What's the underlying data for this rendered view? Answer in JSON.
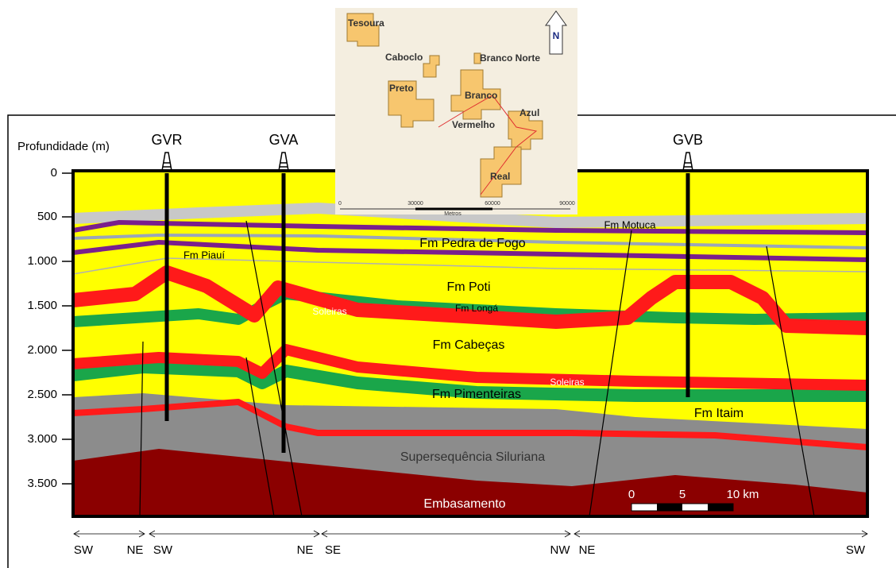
{
  "axis": {
    "title": "Profundidade (m)",
    "ticks": [
      "0",
      "500",
      "1.000",
      "1.500",
      "2.000",
      "2.500",
      "3.000",
      "3.500"
    ]
  },
  "wells": [
    "GVR",
    "GVA",
    "GVB"
  ],
  "formations": [
    "Fm Motuca",
    "Fm Pedra de Fogo",
    "Fm Piauí",
    "Fm Poti",
    "Soleiras",
    "Fm Longá",
    "Fm Cabeças",
    "Soleiras",
    "Fm Pimenteiras",
    "Fm Itaim",
    "Supersequência Siluriana",
    "Embasamento"
  ],
  "map": {
    "fields": [
      "Tesoura",
      "Caboclo",
      "Branco Norte",
      "Preto",
      "Branco",
      "Azul",
      "Vermelho",
      "Real"
    ],
    "north": "N",
    "scale": [
      "0",
      "30000",
      "60000",
      "90000"
    ],
    "unit": "Metros"
  },
  "scale_bar": [
    "0",
    "5",
    "10 km"
  ],
  "directions": [
    "SW",
    "NE",
    "SW",
    "NE",
    "SE",
    "NW",
    "NE",
    "SW"
  ]
}
